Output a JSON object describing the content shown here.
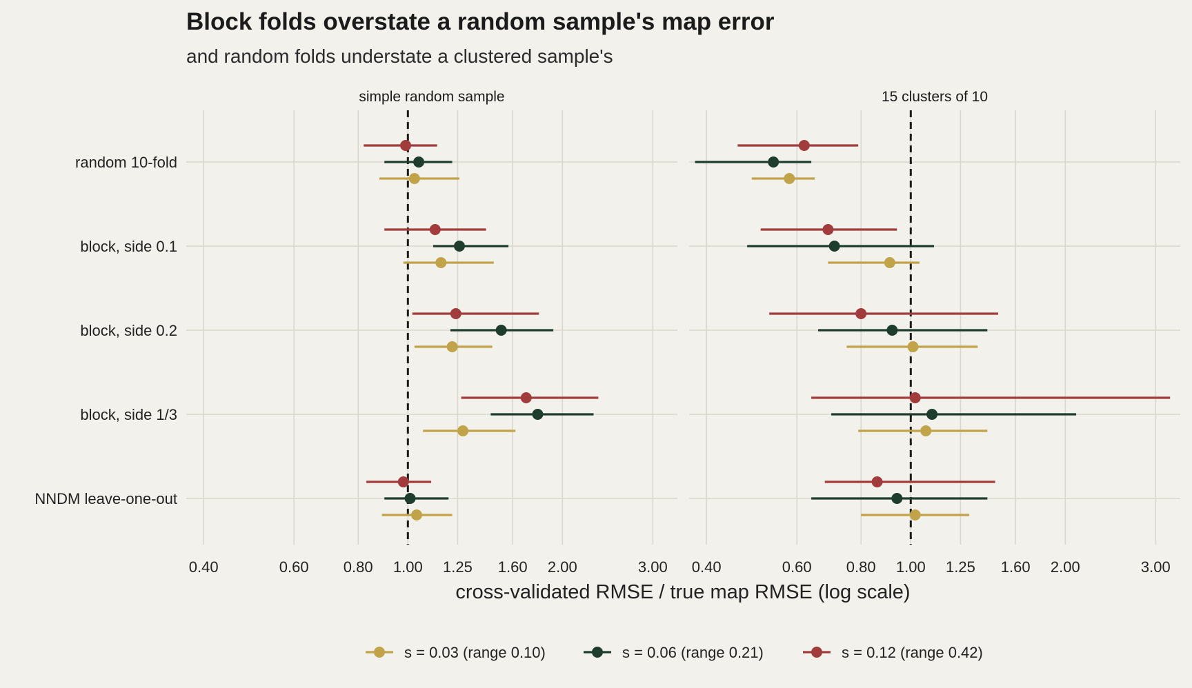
{
  "title": "Block folds overstate a random sample's map error",
  "subtitle": "and random folds understate a clustered sample's",
  "chart_data": {
    "type": "errorbar",
    "x_scale": "log",
    "xlabel": "cross-validated RMSE / true map RMSE (log scale)",
    "x_ticks": [
      0.4,
      0.6,
      0.8,
      1.0,
      1.25,
      1.6,
      2.0,
      3.0
    ],
    "x_tick_labels": [
      "0.40",
      "0.60",
      "0.80",
      "1.00",
      "1.25",
      "1.60",
      "2.00",
      "3.00"
    ],
    "xlim": [
      0.37,
      3.35
    ],
    "reference_line": 1.0,
    "categories": [
      "random 10-fold",
      "block, side 0.1",
      "block, side 0.2",
      "block, side 1/3",
      "NNDM leave-one-out"
    ],
    "legend_position": "bottom",
    "series": [
      {
        "name": "s = 0.03 (range 0.10)",
        "color": "#c1a44a"
      },
      {
        "name": "s = 0.06 (range 0.21)",
        "color": "#1f3d2c"
      },
      {
        "name": "s = 0.12 (range 0.42)",
        "color": "#a23b3b"
      }
    ],
    "panels": [
      {
        "title": "simple random sample",
        "values": [
          [
            {
              "est": 1.03,
              "lo": 0.88,
              "hi": 1.26
            },
            {
              "est": 1.05,
              "lo": 0.9,
              "hi": 1.22
            },
            {
              "est": 0.99,
              "lo": 0.82,
              "hi": 1.14
            }
          ],
          [
            {
              "est": 1.16,
              "lo": 0.98,
              "hi": 1.47
            },
            {
              "est": 1.26,
              "lo": 1.12,
              "hi": 1.57
            },
            {
              "est": 1.13,
              "lo": 0.9,
              "hi": 1.42
            }
          ],
          [
            {
              "est": 1.22,
              "lo": 1.03,
              "hi": 1.46
            },
            {
              "est": 1.52,
              "lo": 1.21,
              "hi": 1.92
            },
            {
              "est": 1.24,
              "lo": 1.02,
              "hi": 1.8
            }
          ],
          [
            {
              "est": 1.28,
              "lo": 1.07,
              "hi": 1.62
            },
            {
              "est": 1.79,
              "lo": 1.45,
              "hi": 2.3
            },
            {
              "est": 1.7,
              "lo": 1.27,
              "hi": 2.35
            }
          ],
          [
            {
              "est": 1.04,
              "lo": 0.89,
              "hi": 1.22
            },
            {
              "est": 1.01,
              "lo": 0.9,
              "hi": 1.2
            },
            {
              "est": 0.98,
              "lo": 0.83,
              "hi": 1.11
            }
          ]
        ]
      },
      {
        "title": "15 clusters of 10",
        "values": [
          [
            {
              "est": 0.58,
              "lo": 0.49,
              "hi": 0.65
            },
            {
              "est": 0.54,
              "lo": 0.38,
              "hi": 0.64
            },
            {
              "est": 0.62,
              "lo": 0.46,
              "hi": 0.79
            }
          ],
          [
            {
              "est": 0.91,
              "lo": 0.69,
              "hi": 1.04
            },
            {
              "est": 0.71,
              "lo": 0.48,
              "hi": 1.11
            },
            {
              "est": 0.69,
              "lo": 0.51,
              "hi": 0.94
            }
          ],
          [
            {
              "est": 1.01,
              "lo": 0.75,
              "hi": 1.35
            },
            {
              "est": 0.92,
              "lo": 0.66,
              "hi": 1.41
            },
            {
              "est": 0.8,
              "lo": 0.53,
              "hi": 1.48
            }
          ],
          [
            {
              "est": 1.07,
              "lo": 0.79,
              "hi": 1.41
            },
            {
              "est": 1.1,
              "lo": 0.7,
              "hi": 2.1
            },
            {
              "est": 1.02,
              "lo": 0.64,
              "hi": 3.2
            }
          ],
          [
            {
              "est": 1.02,
              "lo": 0.8,
              "hi": 1.3
            },
            {
              "est": 0.94,
              "lo": 0.64,
              "hi": 1.41
            },
            {
              "est": 0.86,
              "lo": 0.68,
              "hi": 1.46
            }
          ]
        ]
      }
    ]
  }
}
